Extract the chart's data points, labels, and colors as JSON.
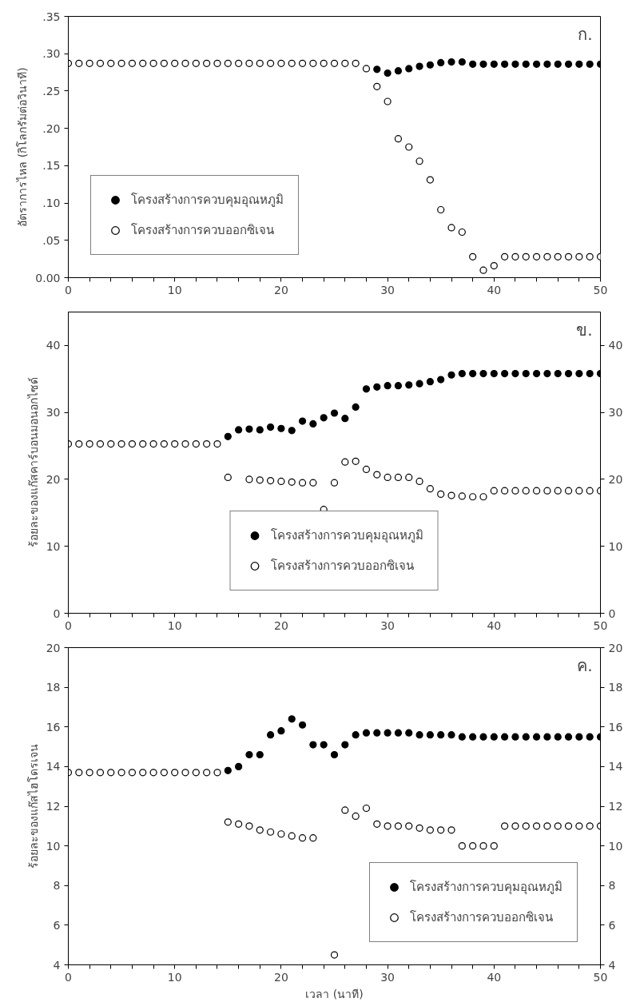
{
  "chart_data": [
    {
      "type": "scatter",
      "ylabel": "อัตราการไหล (กิโลกรัมต่อวินาที)",
      "annotations": [
        "ก."
      ],
      "marker": "circle",
      "legend": "bottom left",
      "grid": false,
      "x": [
        0,
        1,
        2,
        3,
        4,
        5,
        6,
        7,
        8,
        9,
        10,
        11,
        12,
        13,
        14,
        15,
        16,
        17,
        18,
        19,
        20,
        21,
        22,
        23,
        24,
        25,
        26,
        27,
        28,
        29,
        30,
        31,
        32,
        33,
        34,
        35,
        36,
        37,
        38,
        39,
        40,
        41,
        42,
        43,
        44,
        45,
        46,
        47,
        48,
        49,
        50
      ],
      "xlim": [
        0,
        50
      ],
      "ylim": [
        0,
        0.35
      ],
      "xticks": [
        0,
        {
          "value": 2,
          "label": null
        },
        {
          "value": 4,
          "label": null
        },
        {
          "value": 6,
          "label": null
        },
        {
          "value": 8,
          "label": null
        },
        10,
        {
          "value": 12,
          "label": null
        },
        {
          "value": 14,
          "label": null
        },
        {
          "value": 16,
          "label": null
        },
        {
          "value": 18,
          "label": null
        },
        20,
        {
          "value": 22,
          "label": null
        },
        {
          "value": 24,
          "label": null
        },
        {
          "value": 26,
          "label": null
        },
        {
          "value": 28,
          "label": null
        },
        30,
        {
          "value": 32,
          "label": null
        },
        {
          "value": 34,
          "label": null
        },
        {
          "value": 36,
          "label": null
        },
        {
          "value": 38,
          "label": null
        },
        40,
        {
          "value": 42,
          "label": null
        },
        {
          "value": 44,
          "label": null
        },
        {
          "value": 46,
          "label": null
        },
        {
          "value": 48,
          "label": null
        },
        50
      ],
      "yticks": [
        {
          "value": 0,
          "label": "0.00"
        },
        {
          "value": 0.05,
          "label": ".05"
        },
        {
          "value": 0.1,
          "label": ".10"
        },
        {
          "value": 0.15,
          "label": ".15"
        },
        {
          "value": 0.2,
          "label": ".20"
        },
        {
          "value": 0.25,
          "label": ".25"
        },
        {
          "value": 0.3,
          "label": ".30"
        },
        {
          "value": 0.35,
          "label": ".35"
        }
      ],
      "series": [
        {
          "name": "โครงสร้างการควบคุมอุณหภูมิ",
          "color": "#000000",
          "values": [
            null,
            null,
            null,
            null,
            null,
            null,
            null,
            null,
            null,
            null,
            null,
            null,
            null,
            null,
            null,
            null,
            null,
            null,
            null,
            null,
            null,
            null,
            null,
            null,
            null,
            null,
            null,
            null,
            null,
            0.279,
            0.274,
            0.277,
            0.28,
            0.283,
            0.285,
            0.288,
            0.289,
            0.289,
            0.286,
            0.286,
            0.286,
            0.286,
            0.286,
            0.286,
            0.286,
            0.286,
            0.286,
            0.286,
            0.286,
            0.286,
            0.286
          ]
        },
        {
          "name": "โครงสร้างการควบออกซิเจน",
          "color": "#ffffff",
          "values": [
            0.287,
            0.287,
            0.287,
            0.287,
            0.287,
            0.287,
            0.287,
            0.287,
            0.287,
            0.287,
            0.287,
            0.287,
            0.287,
            0.287,
            0.287,
            0.287,
            0.287,
            0.287,
            0.287,
            0.287,
            0.287,
            0.287,
            0.287,
            0.287,
            0.287,
            0.287,
            0.287,
            0.287,
            0.28,
            0.256,
            0.236,
            0.186,
            0.175,
            0.156,
            0.131,
            0.091,
            0.067,
            0.061,
            0.028,
            0.01,
            0.016,
            0.028,
            0.028,
            0.028,
            0.028,
            0.028,
            0.028,
            0.028,
            0.028,
            0.028,
            0.028
          ]
        }
      ]
    },
    {
      "type": "scatter",
      "ylabel": "ร้อยละของแก๊สคาร์บอนมอนอกไซด์",
      "annotations": [
        "ข."
      ],
      "marker": "circle",
      "legend": "bottom",
      "grid": false,
      "x": [
        0,
        1,
        2,
        3,
        4,
        5,
        6,
        7,
        8,
        9,
        10,
        11,
        12,
        13,
        14,
        15,
        16,
        17,
        18,
        19,
        20,
        21,
        22,
        23,
        24,
        25,
        26,
        27,
        28,
        29,
        30,
        31,
        32,
        33,
        34,
        35,
        36,
        37,
        38,
        39,
        40,
        41,
        42,
        43,
        44,
        45,
        46,
        47,
        48,
        49,
        50
      ],
      "xlim": [
        0,
        50
      ],
      "ylim": [
        0,
        45
      ],
      "y2lim": [
        0,
        45
      ],
      "xticks": [
        0,
        {
          "value": 2,
          "label": null
        },
        {
          "value": 4,
          "label": null
        },
        {
          "value": 6,
          "label": null
        },
        {
          "value": 8,
          "label": null
        },
        10,
        {
          "value": 12,
          "label": null
        },
        {
          "value": 14,
          "label": null
        },
        {
          "value": 16,
          "label": null
        },
        {
          "value": 18,
          "label": null
        },
        20,
        {
          "value": 22,
          "label": null
        },
        {
          "value": 24,
          "label": null
        },
        {
          "value": 26,
          "label": null
        },
        {
          "value": 28,
          "label": null
        },
        30,
        {
          "value": 32,
          "label": null
        },
        {
          "value": 34,
          "label": null
        },
        {
          "value": 36,
          "label": null
        },
        {
          "value": 38,
          "label": null
        },
        40,
        {
          "value": 42,
          "label": null
        },
        {
          "value": 44,
          "label": null
        },
        {
          "value": 46,
          "label": null
        },
        {
          "value": 48,
          "label": null
        },
        50
      ],
      "yticks": [
        0,
        10,
        20,
        30,
        40
      ],
      "y2ticks": [
        0,
        10,
        20,
        30,
        40
      ],
      "series": [
        {
          "name": "โครงสร้างการควบคุมอุณหภูมิ",
          "color": "#000000",
          "values": [
            null,
            null,
            null,
            null,
            null,
            null,
            null,
            null,
            null,
            null,
            null,
            null,
            null,
            null,
            null,
            26.4,
            27.4,
            27.5,
            27.4,
            27.8,
            27.6,
            27.3,
            28.7,
            28.3,
            29.2,
            29.9,
            29.1,
            30.8,
            33.5,
            33.8,
            34.0,
            34.0,
            34.1,
            34.3,
            34.6,
            34.9,
            35.6,
            35.8,
            35.8,
            35.8,
            35.8,
            35.8,
            35.8,
            35.8,
            35.8,
            35.8,
            35.8,
            35.8,
            35.8,
            35.8,
            35.8
          ]
        },
        {
          "name": "โครงสร้างการควบออกซิเจน",
          "color": "#ffffff",
          "values": [
            25.3,
            25.3,
            25.3,
            25.3,
            25.3,
            25.3,
            25.3,
            25.3,
            25.3,
            25.3,
            25.3,
            25.3,
            25.3,
            25.3,
            25.3,
            20.3,
            null,
            20.0,
            19.9,
            19.8,
            19.7,
            19.6,
            19.5,
            19.5,
            15.5,
            19.5,
            22.6,
            22.7,
            21.5,
            20.7,
            20.3,
            20.3,
            20.3,
            19.7,
            18.6,
            17.8,
            17.6,
            17.5,
            17.4,
            17.4,
            18.3,
            18.3,
            18.3,
            18.3,
            18.3,
            18.3,
            18.3,
            18.3,
            18.3,
            18.3,
            18.3
          ]
        }
      ]
    },
    {
      "type": "scatter",
      "xlabel": "เวลา (นาที)",
      "ylabel": "ร้อยละของแก๊สไฮโดรเจน",
      "annotations": [
        "ค."
      ],
      "marker": "circle",
      "legend": "bottom right",
      "grid": false,
      "x": [
        0,
        1,
        2,
        3,
        4,
        5,
        6,
        7,
        8,
        9,
        10,
        11,
        12,
        13,
        14,
        15,
        16,
        17,
        18,
        19,
        20,
        21,
        22,
        23,
        24,
        25,
        26,
        27,
        28,
        29,
        30,
        31,
        32,
        33,
        34,
        35,
        36,
        37,
        38,
        39,
        40,
        41,
        42,
        43,
        44,
        45,
        46,
        47,
        48,
        49,
        50
      ],
      "xlim": [
        0,
        50
      ],
      "ylim": [
        4,
        20
      ],
      "y2lim": [
        4,
        20
      ],
      "xticks": [
        0,
        {
          "value": 2,
          "label": null
        },
        {
          "value": 4,
          "label": null
        },
        {
          "value": 6,
          "label": null
        },
        {
          "value": 8,
          "label": null
        },
        10,
        {
          "value": 12,
          "label": null
        },
        {
          "value": 14,
          "label": null
        },
        {
          "value": 16,
          "label": null
        },
        {
          "value": 18,
          "label": null
        },
        20,
        {
          "value": 22,
          "label": null
        },
        {
          "value": 24,
          "label": null
        },
        {
          "value": 26,
          "label": null
        },
        {
          "value": 28,
          "label": null
        },
        30,
        {
          "value": 32,
          "label": null
        },
        {
          "value": 34,
          "label": null
        },
        {
          "value": 36,
          "label": null
        },
        {
          "value": 38,
          "label": null
        },
        40,
        {
          "value": 42,
          "label": null
        },
        {
          "value": 44,
          "label": null
        },
        {
          "value": 46,
          "label": null
        },
        {
          "value": 48,
          "label": null
        },
        50
      ],
      "yticks": [
        4,
        6,
        8,
        10,
        12,
        14,
        16,
        18,
        20
      ],
      "y2ticks": [
        4,
        6,
        8,
        10,
        12,
        14,
        16,
        18,
        20
      ],
      "series": [
        {
          "name": "โครงสร้างการควบคุมอุณหภูมิ",
          "color": "#000000",
          "values": [
            null,
            null,
            null,
            null,
            null,
            null,
            null,
            null,
            null,
            null,
            null,
            null,
            null,
            null,
            null,
            13.8,
            14.0,
            14.6,
            14.6,
            15.6,
            15.8,
            16.4,
            16.1,
            15.1,
            15.1,
            14.6,
            15.1,
            15.6,
            15.7,
            15.7,
            15.7,
            15.7,
            15.7,
            15.6,
            15.6,
            15.6,
            15.6,
            15.5,
            15.5,
            15.5,
            15.5,
            15.5,
            15.5,
            15.5,
            15.5,
            15.5,
            15.5,
            15.5,
            15.5,
            15.5,
            15.5
          ]
        },
        {
          "name": "โครงสร้างการควบออกซิเจน",
          "color": "#ffffff",
          "values": [
            13.7,
            13.7,
            13.7,
            13.7,
            13.7,
            13.7,
            13.7,
            13.7,
            13.7,
            13.7,
            13.7,
            13.7,
            13.7,
            13.7,
            13.7,
            11.2,
            11.1,
            11.0,
            10.8,
            10.7,
            10.6,
            10.5,
            10.4,
            10.4,
            null,
            4.5,
            11.8,
            11.5,
            11.9,
            11.1,
            11.0,
            11.0,
            11.0,
            10.9,
            10.8,
            10.8,
            10.8,
            10.0,
            10.0,
            10.0,
            10.0,
            11.0,
            11.0,
            11.0,
            11.0,
            11.0,
            11.0,
            11.0,
            11.0,
            11.0,
            11.0
          ]
        }
      ]
    }
  ]
}
